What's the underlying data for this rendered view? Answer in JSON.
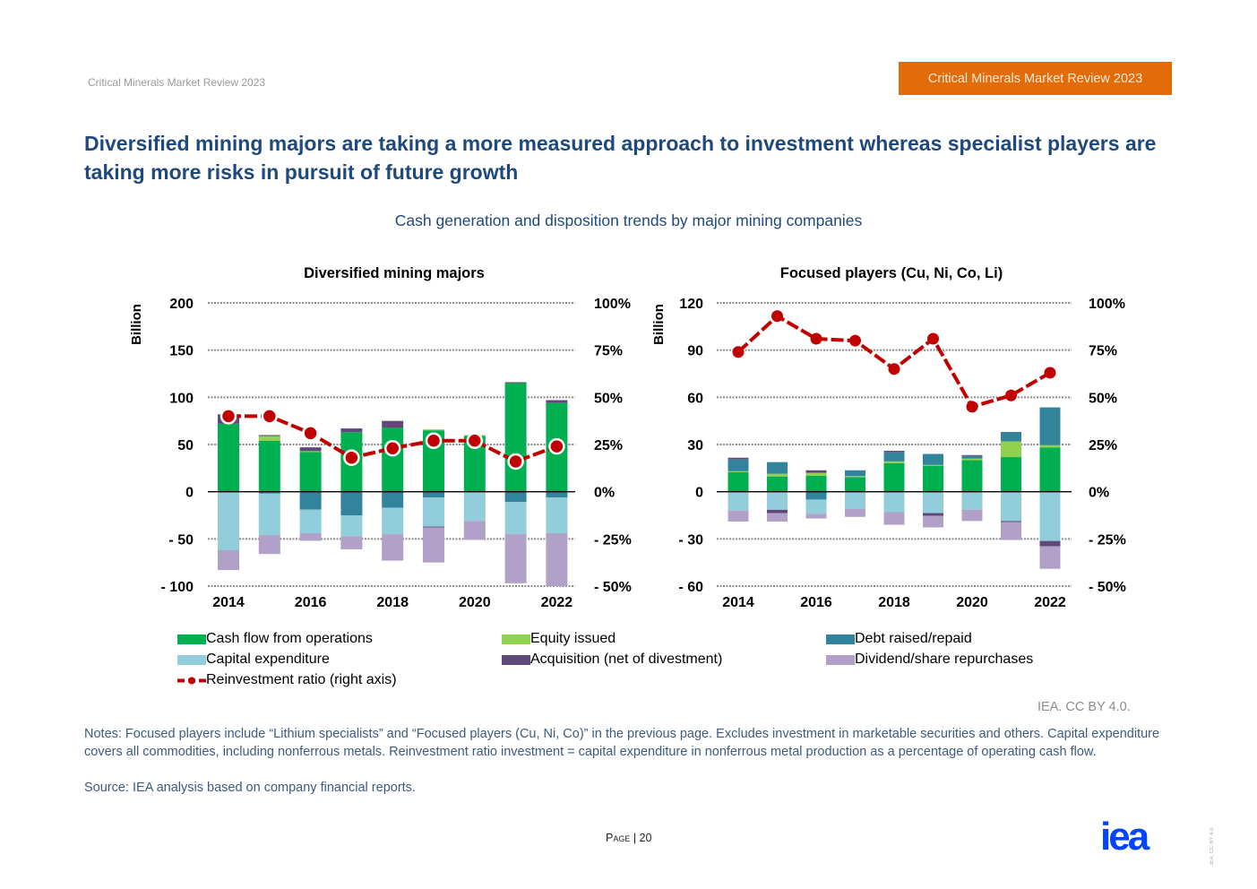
{
  "header": {
    "left_label": "Critical Minerals Market Review 2023",
    "badge_label": "Critical Minerals Market Review 2023",
    "badge_color": "#e36c0a"
  },
  "title": "Diversified mining majors are taking a more measured approach to investment whereas specialist players are taking more risks in pursuit of future growth",
  "subtitle": "Cash generation and disposition trends by major mining companies",
  "colors": {
    "cfo": "#00b050",
    "equity": "#92d050",
    "debt": "#31849b",
    "capex": "#92cddc",
    "acq": "#5f497a",
    "div": "#b1a0c7",
    "ratio": "#c00000",
    "title": "#1f497d"
  },
  "legend": {
    "cfo": "Cash flow from operations",
    "equity": "Equity issued",
    "debt": "Debt raised/repaid",
    "capex": "Capital expenditure",
    "acq": "Acquisition (net of divestment)",
    "div": "Dividend/share repurchases",
    "ratio": "Reinvestment ratio (right axis)"
  },
  "chart_data": [
    {
      "type": "bar",
      "stacked": true,
      "title": "Diversified mining majors",
      "ylabel": "Billion",
      "ylim": [
        -100,
        200
      ],
      "yticks": [
        200,
        150,
        100,
        50,
        0,
        -50,
        -100
      ],
      "ytick_labels": [
        "200",
        "150",
        "100",
        "50",
        "0",
        "- 50",
        "- 100"
      ],
      "y2lim": [
        -50,
        100
      ],
      "y2ticks": [
        100,
        75,
        50,
        25,
        0,
        -25,
        -50
      ],
      "y2tick_labels": [
        "100%",
        "75%",
        "50%",
        "25%",
        "0%",
        "- 25%",
        "- 50%"
      ],
      "categories": [
        "2014",
        "2015",
        "2016",
        "2017",
        "2018",
        "2019",
        "2020",
        "2021",
        "2022"
      ],
      "xtick_labels": [
        "2014",
        "",
        "2016",
        "",
        "2018",
        "",
        "2020",
        "",
        "2022"
      ],
      "grid": true,
      "series": [
        {
          "key": "cfo",
          "name": "Cash flow from operations",
          "values": [
            72,
            54,
            42,
            63,
            68,
            65,
            59,
            115,
            94
          ]
        },
        {
          "key": "equity",
          "name": "Equity issued",
          "values": [
            0,
            5,
            1,
            0,
            0,
            1,
            1,
            0,
            0
          ]
        },
        {
          "key": "debt",
          "name": "Debt raised/repaid",
          "values": [
            0,
            -2,
            -19,
            -25,
            -17,
            -6,
            0,
            -11,
            -6
          ]
        },
        {
          "key": "capex",
          "name": "Capital expenditure",
          "values": [
            -62,
            -44,
            -25,
            -22,
            -28,
            -31,
            -31,
            -34,
            -38
          ]
        },
        {
          "key": "acq",
          "name": "Acquisition (net of divestment)",
          "values": [
            10,
            1,
            4,
            4,
            7,
            -1,
            0,
            1,
            3
          ]
        },
        {
          "key": "div",
          "name": "Dividend/share repurchases",
          "values": [
            -21,
            -20,
            -8,
            -14,
            -28,
            -37,
            -20,
            -52,
            -56
          ]
        }
      ],
      "ratio": {
        "name": "Reinvestment ratio (right axis)",
        "axis": "right",
        "values": [
          40,
          40,
          31,
          18,
          23,
          27,
          27,
          16,
          24
        ]
      }
    },
    {
      "type": "bar",
      "stacked": true,
      "title": "Focused players (Cu, Ni, Co, Li)",
      "ylabel": "Billion",
      "ylim": [
        -60,
        120
      ],
      "yticks": [
        120,
        90,
        60,
        30,
        0,
        -30,
        -60
      ],
      "ytick_labels": [
        "120",
        "90",
        "60",
        "30",
        "0",
        "- 30",
        "- 60"
      ],
      "y2lim": [
        -50,
        100
      ],
      "y2ticks": [
        100,
        75,
        50,
        25,
        0,
        -25,
        -50
      ],
      "y2tick_labels": [
        "100%",
        "75%",
        "50%",
        "25%",
        "0%",
        "- 25%",
        "- 50%"
      ],
      "categories": [
        "2014",
        "2015",
        "2016",
        "2017",
        "2018",
        "2019",
        "2020",
        "2021",
        "2022"
      ],
      "xtick_labels": [
        "2014",
        "",
        "2016",
        "",
        "2018",
        "",
        "2020",
        "",
        "2022"
      ],
      "grid": true,
      "series": [
        {
          "key": "cfo",
          "name": "Cash flow from operations",
          "values": [
            12.5,
            9.7,
            10.2,
            9.3,
            18.2,
            16.5,
            20,
            22,
            28
          ]
        },
        {
          "key": "equity",
          "name": "Equity issued",
          "values": [
            0.5,
            1.7,
            1.8,
            0.7,
            1.1,
            0.5,
            1,
            10,
            1.6
          ]
        },
        {
          "key": "debt",
          "name": "Debt raised/repaid",
          "values": [
            7.5,
            7.4,
            -5,
            3.6,
            5.7,
            7,
            1.7,
            6,
            24
          ]
        },
        {
          "key": "capex",
          "name": "Capital expenditure",
          "values": [
            -12,
            -11.5,
            -9,
            -11,
            -13,
            -13.6,
            -11.4,
            -18.7,
            -31.3
          ]
        },
        {
          "key": "acq",
          "name": "Acquisition (net of divestment)",
          "values": [
            1.1,
            -2.2,
            1.6,
            0,
            1,
            -1.8,
            0.6,
            -0.6,
            -3.4
          ]
        },
        {
          "key": "div",
          "name": "Dividend/share repurchases",
          "values": [
            -7,
            -5.3,
            -3,
            -5,
            -8,
            -7.3,
            -7.2,
            -11.4,
            -14.3
          ]
        }
      ],
      "ratio": {
        "name": "Reinvestment ratio (right axis)",
        "axis": "right",
        "values": [
          74,
          93,
          81,
          80,
          65,
          81,
          45,
          51,
          63
        ]
      }
    }
  ],
  "footer": {
    "credit": "IEA. CC BY 4.0.",
    "notes": "Notes: Focused players include “Lithium specialists” and “Focused players (Cu, Ni, Co)” in the previous page. Excludes investment in marketable securities and others. Capital expenditure covers all commodities, including nonferrous metals. Reinvestment ratio investment = capital expenditure in nonferrous metal production as a percentage of operating cash flow.",
    "source": "Source: IEA analysis based on company financial reports.",
    "page_label": "Page",
    "page_sep": " | ",
    "page_number": "20",
    "logo_text": "iea",
    "vertical_credit": "IEA. CC BY 4.0."
  }
}
